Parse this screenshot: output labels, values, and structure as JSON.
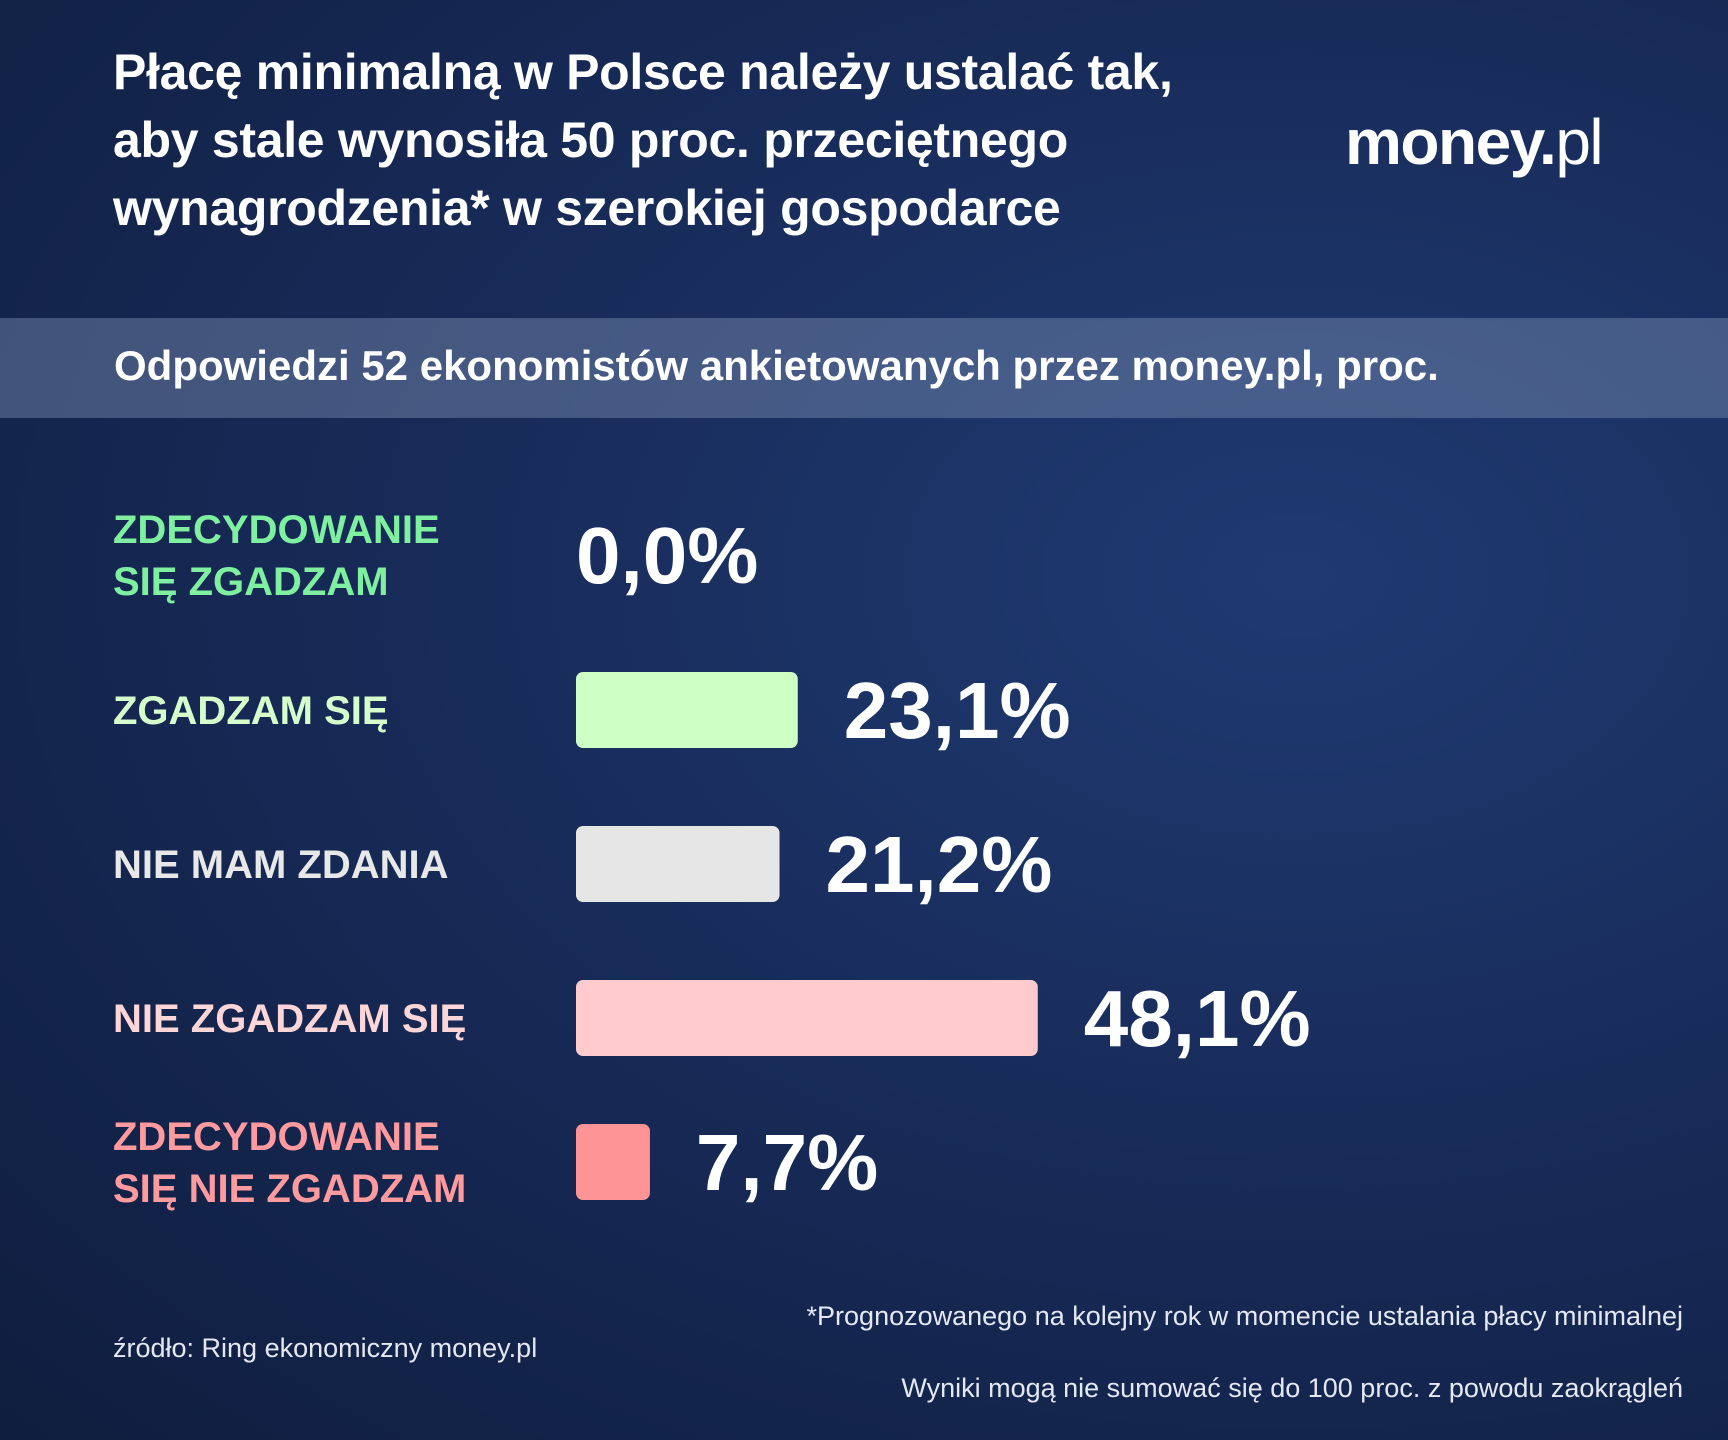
{
  "title_lines": [
    "Płacę minimalną w Polsce należy ustalać tak,",
    "aby stale wynosiła 50 proc. przeciętnego",
    "wynagrodzenia* w szerokiej gospodarce"
  ],
  "logo": {
    "main": "money.",
    "suffix": "pl"
  },
  "subtitle": "Odpowiedzi 52 ekonomistów ankietowanych przez money.pl, proc.",
  "chart_data": {
    "type": "bar",
    "orientation": "horizontal",
    "categories": [
      "ZDECYDOWANIE SIĘ ZGADZAM",
      "ZGADZAM SIĘ",
      "NIE MAM ZDANIA",
      "NIE ZGADZAM SIĘ",
      "ZDECYDOWANIE SIĘ NIE ZGADZAM"
    ],
    "category_lines": [
      [
        "ZDECYDOWANIE",
        "SIĘ ZGADZAM"
      ],
      [
        "ZGADZAM SIĘ"
      ],
      [
        "NIE MAM ZDANIA"
      ],
      [
        "NIE ZGADZAM SIĘ"
      ],
      [
        "ZDECYDOWANIE",
        "SIĘ NIE ZGADZAM"
      ]
    ],
    "values": [
      0.0,
      23.1,
      21.2,
      48.1,
      7.7
    ],
    "value_labels": [
      "0,0%",
      "23,1%",
      "21,2%",
      "48,1%",
      "7,7%"
    ],
    "label_colors": [
      "#7ff0a0",
      "#d6ffcc",
      "#e8e8e8",
      "#ffd6d8",
      "#ff9a9e"
    ],
    "bar_colors": [
      "#bff7b6",
      "#ceffc4",
      "#e6e6e6",
      "#ffcbcc",
      "#ff9496"
    ],
    "grid": false
  },
  "footer": {
    "source": "źródło: Ring ekonomiczny money.pl",
    "note": "*Prognozowanego na kolejny rok w momencie ustalania płacy minimalnej",
    "rounding_note": "Wyniki mogą nie sumować się do 100 proc. z powodu zaokrągleń"
  }
}
